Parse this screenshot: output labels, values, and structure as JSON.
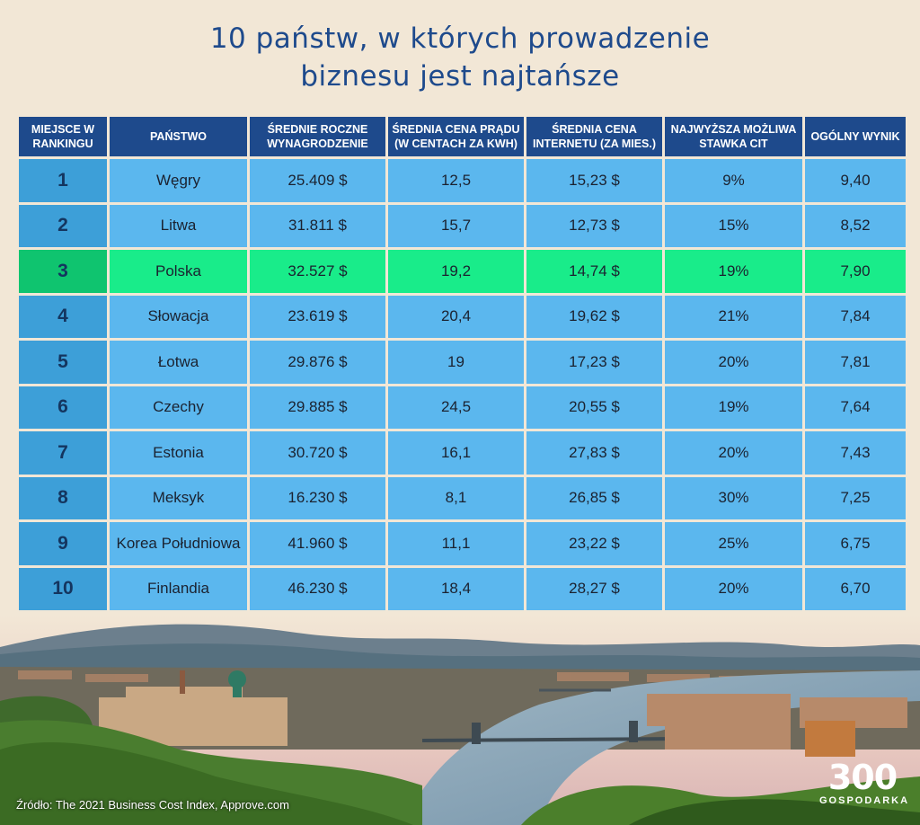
{
  "title": {
    "line1": "10 państw, w których prowadzenie",
    "line2": "biznesu jest najtańsze"
  },
  "table": {
    "headers": [
      "MIEJSCE W RANKINGU",
      "PAŃSTWO",
      "ŚREDNIE ROCZNE WYNAGRODZENIE",
      "ŚREDNIA CENA PRĄDU (W CENTACH ZA KWH)",
      "ŚREDNIA CENA INTERNETU (ZA MIES.)",
      "NAJWYŻSZA MOŻLIWA STAWKA CIT",
      "OGÓLNY WYNIK"
    ],
    "rows": [
      [
        "1",
        "Węgry",
        "25.409 $",
        "12,5",
        "15,23 $",
        "9%",
        "9,40"
      ],
      [
        "2",
        "Litwa",
        "31.811 $",
        "15,7",
        "12,73 $",
        "15%",
        "8,52"
      ],
      [
        "3",
        "Polska",
        "32.527 $",
        "19,2",
        "14,74 $",
        "19%",
        "7,90"
      ],
      [
        "4",
        "Słowacja",
        "23.619 $",
        "20,4",
        "19,62 $",
        "21%",
        "7,84"
      ],
      [
        "5",
        "Łotwa",
        "29.876 $",
        "19",
        "17,23 $",
        "20%",
        "7,81"
      ],
      [
        "6",
        "Czechy",
        "29.885 $",
        "24,5",
        "20,55 $",
        "19%",
        "7,64"
      ],
      [
        "7",
        "Estonia",
        "30.720 $",
        "16,1",
        "27,83 $",
        "20%",
        "7,43"
      ],
      [
        "8",
        "Meksyk",
        "16.230 $",
        "8,1",
        "26,85 $",
        "30%",
        "7,25"
      ],
      [
        "9",
        "Korea Południowa",
        "41.960 $",
        "11,1",
        "23,22 $",
        "25%",
        "6,75"
      ],
      [
        "10",
        "Finlandia",
        "46.230 $",
        "18,4",
        "28,27 $",
        "20%",
        "6,70"
      ]
    ],
    "highlighted_row": "Polska"
  },
  "source": "Źródło: The 2021 Business Cost Index, Approve.com",
  "logo": {
    "number": "300",
    "word": "GOSPODARKA"
  },
  "colors": {
    "title": "#1e4a8c",
    "header_bg": "#1e4a8c",
    "cell_bg": "#5bb7ee",
    "rank_bg": "#3d9fd8",
    "highlight_bg": "#19ec8a",
    "page_bg": "#f2e7d6"
  }
}
